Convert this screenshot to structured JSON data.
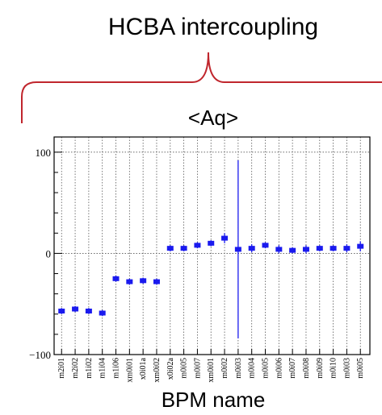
{
  "annotation": {
    "text": "HCBA intercoupling"
  },
  "chart_data": {
    "type": "scatter",
    "title": "<Aq>",
    "xlabel": "BPM name",
    "ylabel": "",
    "ylim": [
      -100,
      115
    ],
    "yticks": [
      -100,
      0,
      100
    ],
    "yticklabels": [
      "−100",
      "0",
      "100"
    ],
    "grid": true,
    "categories": [
      "m2i01",
      "m2i02",
      "m1i02",
      "m1i04",
      "m1i06",
      "xm0i01",
      "x0i01a",
      "xm0i02",
      "x0i02a",
      "m0i05",
      "m0i07",
      "xm0i01",
      "m0i02",
      "m0i03",
      "m0i04",
      "m0i05",
      "m0i06",
      "m0i07",
      "m0i08",
      "m0i09",
      "m0i10",
      "m0i03",
      "m0i05"
    ],
    "series": [
      {
        "values": [
          -57,
          -55,
          -57,
          -59,
          -25,
          -28,
          -27,
          -28,
          5,
          5,
          8,
          10,
          15,
          4,
          5,
          8,
          4,
          3,
          4,
          5,
          5,
          5,
          7
        ],
        "errors": [
          3,
          3,
          3,
          3,
          3,
          3,
          3,
          3,
          3,
          3,
          3,
          3,
          5,
          88,
          4,
          3,
          4,
          3,
          4,
          3,
          3,
          4,
          5
        ]
      }
    ],
    "colors": {
      "marker": "#1a1aee",
      "grid": "#555555",
      "axis": "#000000",
      "bracket": "#c0262d"
    }
  }
}
